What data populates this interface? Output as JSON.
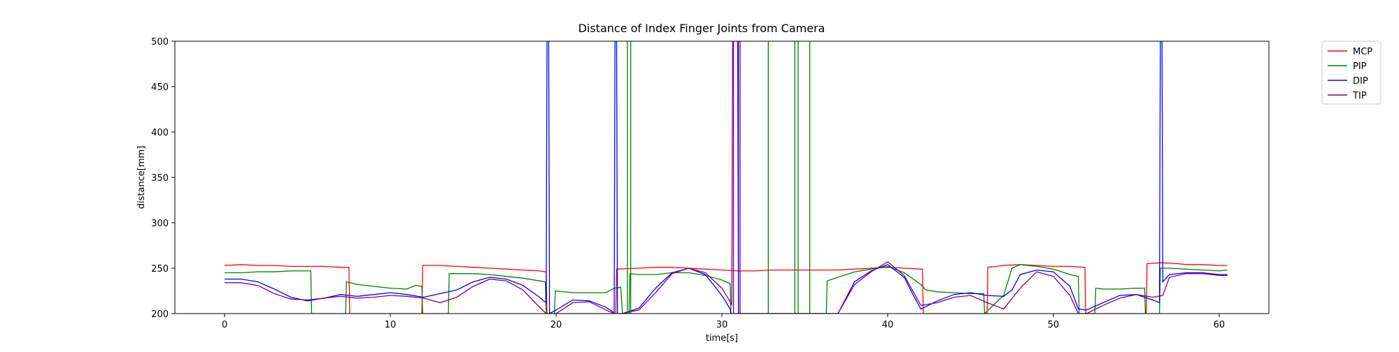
{
  "chart_data": {
    "type": "line",
    "title": "Distance of Index Finger Joints from Camera",
    "xlabel": "time[s]",
    "ylabel": "distance[mm]",
    "xlim": [
      -3,
      63
    ],
    "ylim": [
      200,
      500
    ],
    "x_ticks": [
      0,
      10,
      20,
      30,
      40,
      50,
      60
    ],
    "y_ticks": [
      200,
      250,
      300,
      350,
      400,
      450,
      500
    ],
    "grid": false,
    "legend_position": "outside-top-right",
    "series": [
      {
        "name": "MCP",
        "color": "#ff0000",
        "points": [
          [
            0,
            253
          ],
          [
            1,
            254
          ],
          [
            2,
            253
          ],
          [
            3,
            253
          ],
          [
            4,
            252
          ],
          [
            5,
            252
          ],
          [
            6,
            252
          ],
          [
            7,
            251
          ],
          [
            7.5,
            251
          ],
          [
            7.55,
            200
          ],
          [
            11.9,
            200
          ],
          [
            11.95,
            253
          ],
          [
            13,
            253
          ],
          [
            14,
            252
          ],
          [
            15,
            251
          ],
          [
            16,
            250
          ],
          [
            17,
            249
          ],
          [
            18,
            248
          ],
          [
            19,
            247
          ],
          [
            19.4,
            246
          ],
          [
            19.45,
            200
          ],
          [
            23.6,
            200
          ],
          [
            23.65,
            249
          ],
          [
            25,
            250
          ],
          [
            26,
            251
          ],
          [
            27,
            251
          ],
          [
            28,
            250
          ],
          [
            29,
            249
          ],
          [
            30,
            248
          ],
          [
            31,
            247
          ],
          [
            32,
            247
          ],
          [
            33,
            248
          ],
          [
            34,
            248
          ],
          [
            35,
            248
          ],
          [
            36,
            248
          ],
          [
            37,
            248
          ],
          [
            38,
            249
          ],
          [
            39,
            250
          ],
          [
            40,
            251
          ],
          [
            41,
            250
          ],
          [
            42,
            249
          ],
          [
            42.1,
            249
          ],
          [
            42.15,
            200
          ],
          [
            46,
            200
          ],
          [
            46.05,
            251
          ],
          [
            47,
            253
          ],
          [
            48,
            254
          ],
          [
            49,
            253
          ],
          [
            50,
            252
          ],
          [
            51,
            252
          ],
          [
            51.9,
            251
          ],
          [
            51.95,
            200
          ],
          [
            55.6,
            200
          ],
          [
            55.65,
            255
          ],
          [
            56.5,
            256
          ],
          [
            57.5,
            255
          ],
          [
            58,
            254
          ],
          [
            59,
            254
          ],
          [
            60,
            253
          ],
          [
            60.5,
            253
          ]
        ]
      },
      {
        "name": "PIP",
        "color": "#008000",
        "points": [
          [
            0,
            245
          ],
          [
            1,
            245
          ],
          [
            2,
            246
          ],
          [
            3,
            246
          ],
          [
            4,
            247
          ],
          [
            5,
            247
          ],
          [
            5.2,
            247
          ],
          [
            5.25,
            200
          ],
          [
            7.3,
            200
          ],
          [
            7.35,
            235
          ],
          [
            8,
            232
          ],
          [
            9,
            230
          ],
          [
            10,
            228
          ],
          [
            11,
            227
          ],
          [
            11.5,
            231
          ],
          [
            11.9,
            230
          ],
          [
            11.95,
            200
          ],
          [
            13.5,
            200
          ],
          [
            13.55,
            244
          ],
          [
            15,
            244
          ],
          [
            16,
            243
          ],
          [
            17,
            241
          ],
          [
            18,
            239
          ],
          [
            19,
            236
          ],
          [
            19.35,
            235
          ],
          [
            19.4,
            200
          ],
          [
            19.9,
            200
          ],
          [
            19.95,
            225
          ],
          [
            21,
            223
          ],
          [
            22,
            223
          ],
          [
            23,
            223
          ],
          [
            23.5,
            228
          ],
          [
            23.9,
            229
          ],
          [
            24.0,
            200
          ],
          [
            24.4,
            200
          ],
          [
            24.45,
            244
          ],
          [
            25,
            243
          ],
          [
            26,
            243
          ],
          [
            27,
            245
          ],
          [
            28,
            245
          ],
          [
            29,
            242
          ],
          [
            30,
            237
          ],
          [
            30.5,
            233
          ],
          [
            30.55,
            200
          ],
          [
            36.3,
            200
          ],
          [
            36.35,
            236
          ],
          [
            37,
            240
          ],
          [
            38,
            246
          ],
          [
            39,
            249
          ],
          [
            40,
            252
          ],
          [
            41,
            245
          ],
          [
            42,
            232
          ],
          [
            42.3,
            226
          ],
          [
            43,
            224
          ],
          [
            44,
            223
          ],
          [
            45,
            222
          ],
          [
            45.8,
            222
          ],
          [
            45.85,
            200
          ],
          [
            47,
            220
          ],
          [
            47.5,
            250
          ],
          [
            48,
            254
          ],
          [
            49,
            252
          ],
          [
            50,
            249
          ],
          [
            51,
            243
          ],
          [
            51.5,
            241
          ],
          [
            51.55,
            200
          ],
          [
            52.5,
            200
          ],
          [
            52.55,
            228
          ],
          [
            53,
            227
          ],
          [
            54,
            227
          ],
          [
            55,
            228
          ],
          [
            55.5,
            228
          ],
          [
            55.55,
            200
          ],
          [
            56.4,
            200
          ],
          [
            56.45,
            250
          ],
          [
            57,
            250
          ],
          [
            58,
            249
          ],
          [
            59,
            248
          ],
          [
            60,
            247
          ],
          [
            60.5,
            248
          ]
        ]
      },
      {
        "name": "DIP",
        "color": "#0000ff",
        "points": [
          [
            0,
            238
          ],
          [
            1,
            238
          ],
          [
            2,
            235
          ],
          [
            3,
            227
          ],
          [
            4,
            218
          ],
          [
            5,
            214
          ],
          [
            6,
            217
          ],
          [
            7,
            221
          ],
          [
            8,
            219
          ],
          [
            9,
            221
          ],
          [
            10,
            223
          ],
          [
            11,
            221
          ],
          [
            12,
            218
          ],
          [
            13,
            222
          ],
          [
            14,
            226
          ],
          [
            15,
            235
          ],
          [
            16,
            240
          ],
          [
            17,
            238
          ],
          [
            18,
            231
          ],
          [
            19,
            218
          ],
          [
            19.4,
            212
          ],
          [
            19.45,
            500
          ],
          [
            19.55,
            500
          ],
          [
            19.6,
            200
          ],
          [
            20,
            204
          ],
          [
            21,
            215
          ],
          [
            22,
            214
          ],
          [
            23,
            207
          ],
          [
            23.5,
            201
          ],
          [
            23.55,
            500
          ],
          [
            23.65,
            500
          ],
          [
            23.7,
            200
          ],
          [
            24,
            200
          ],
          [
            25,
            206
          ],
          [
            26,
            228
          ],
          [
            27,
            245
          ],
          [
            28,
            250
          ],
          [
            29,
            243
          ],
          [
            30,
            220
          ],
          [
            30.5,
            205
          ],
          [
            30.55,
            200
          ],
          [
            31,
            200
          ],
          [
            33,
            200
          ],
          [
            35,
            200
          ],
          [
            37,
            200
          ],
          [
            38,
            235
          ],
          [
            39,
            247
          ],
          [
            40,
            254
          ],
          [
            41,
            240
          ],
          [
            41.5,
            222
          ],
          [
            42,
            205
          ],
          [
            43,
            214
          ],
          [
            44,
            221
          ],
          [
            45,
            223
          ],
          [
            46,
            220
          ],
          [
            47,
            219
          ],
          [
            47.5,
            226
          ],
          [
            48,
            243
          ],
          [
            49,
            248
          ],
          [
            50,
            246
          ],
          [
            51,
            230
          ],
          [
            51.5,
            205
          ],
          [
            52,
            204
          ],
          [
            53,
            212
          ],
          [
            54,
            220
          ],
          [
            55,
            221
          ],
          [
            56,
            215
          ],
          [
            56.4,
            212
          ],
          [
            56.45,
            500
          ],
          [
            56.55,
            500
          ],
          [
            56.6,
            235
          ],
          [
            57,
            243
          ],
          [
            58,
            245
          ],
          [
            59,
            245
          ],
          [
            60,
            243
          ],
          [
            60.5,
            243
          ]
        ]
      },
      {
        "name": "TIP",
        "color": "#800080",
        "points": [
          [
            0,
            234
          ],
          [
            1,
            234
          ],
          [
            2,
            231
          ],
          [
            3,
            222
          ],
          [
            4,
            216
          ],
          [
            5,
            215
          ],
          [
            6,
            217
          ],
          [
            7,
            219
          ],
          [
            8,
            217
          ],
          [
            9,
            218
          ],
          [
            10,
            220
          ],
          [
            11,
            219
          ],
          [
            12,
            217
          ],
          [
            13,
            212
          ],
          [
            14,
            218
          ],
          [
            15,
            230
          ],
          [
            16,
            238
          ],
          [
            17,
            236
          ],
          [
            18,
            226
          ],
          [
            19,
            207
          ],
          [
            19.4,
            200
          ],
          [
            20,
            200
          ],
          [
            21,
            212
          ],
          [
            22,
            213
          ],
          [
            23,
            204
          ],
          [
            23.5,
            200
          ],
          [
            24,
            200
          ],
          [
            25,
            204
          ],
          [
            26,
            223
          ],
          [
            27,
            244
          ],
          [
            28,
            250
          ],
          [
            29,
            245
          ],
          [
            30,
            228
          ],
          [
            30.6,
            210
          ],
          [
            30.65,
            500
          ],
          [
            30.95,
            500
          ],
          [
            31.0,
            200
          ],
          [
            32,
            200
          ],
          [
            35,
            200
          ],
          [
            37,
            200
          ],
          [
            38,
            232
          ],
          [
            39,
            246
          ],
          [
            40,
            257
          ],
          [
            41,
            242
          ],
          [
            42,
            209
          ],
          [
            43,
            212
          ],
          [
            44,
            218
          ],
          [
            45,
            220
          ],
          [
            46,
            212
          ],
          [
            47,
            205
          ],
          [
            48,
            228
          ],
          [
            49,
            246
          ],
          [
            50,
            241
          ],
          [
            51,
            220
          ],
          [
            51.5,
            200
          ],
          [
            52,
            200
          ],
          [
            53,
            209
          ],
          [
            54,
            217
          ],
          [
            55,
            221
          ],
          [
            56,
            218
          ],
          [
            56.6,
            220
          ],
          [
            57,
            240
          ],
          [
            58,
            244
          ],
          [
            59,
            244
          ],
          [
            60,
            242
          ],
          [
            60.5,
            242
          ]
        ]
      }
    ],
    "spikes": [
      {
        "color": "#008000",
        "x": [
          24.3,
          24.5,
          32.8,
          34.4,
          34.6,
          35.3
        ]
      },
      {
        "color": "#800080",
        "x": [
          30.7,
          31.1
        ]
      },
      {
        "color": "#0000ff",
        "x": [
          31.0
        ]
      }
    ]
  }
}
